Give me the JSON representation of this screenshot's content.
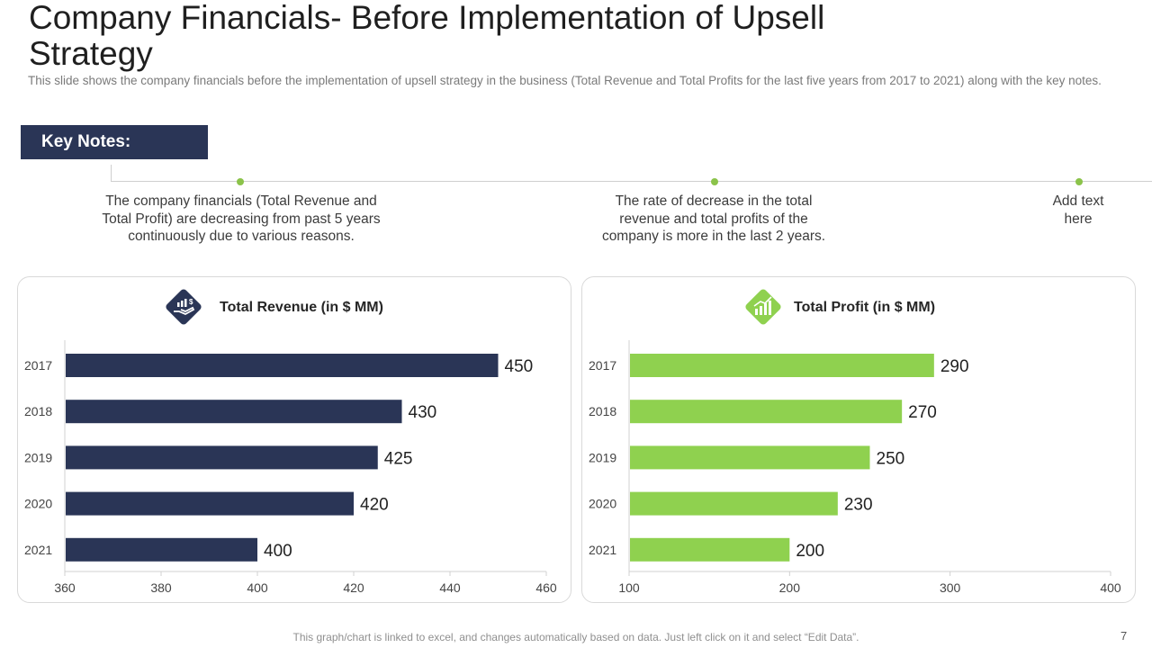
{
  "slide": {
    "title": "Company Financials- Before Implementation of Upsell Strategy",
    "subtitle": "This slide shows the company financials before the implementation of upsell strategy in the business (Total Revenue and Total Profits for the last five years from 2017 to 2021) along with the key notes.",
    "key_notes_label": "Key Notes:",
    "notes": [
      "The company financials (Total Revenue and Total Profit) are decreasing from past 5 years continuously  due to various reasons.",
      "The rate of decrease in the total revenue and total profits of the company is more in the last 2 years.",
      "Add text here"
    ],
    "footer": "This graph/chart is linked to excel, and changes automatically based on data. Just left click on it and select “Edit Data”.",
    "page_number": "7"
  },
  "icons": {
    "revenue": "hand-money-icon",
    "profit": "growth-chart-icon"
  },
  "colors": {
    "navy": "#2a3556",
    "green": "#8fd14f",
    "accent_dot": "#8bc34a"
  },
  "chart_data": [
    {
      "type": "bar",
      "orientation": "horizontal",
      "title": "Total Revenue (in $ MM)",
      "categories": [
        "2017",
        "2018",
        "2019",
        "2020",
        "2021"
      ],
      "values": [
        450,
        430,
        425,
        420,
        400
      ],
      "xlim": [
        360,
        460
      ],
      "xticks": [
        360,
        380,
        400,
        420,
        440,
        460
      ],
      "color": "#2a3556",
      "grid": false,
      "data_labels": true
    },
    {
      "type": "bar",
      "orientation": "horizontal",
      "title": "Total Profit (in $ MM)",
      "categories": [
        "2017",
        "2018",
        "2019",
        "2020",
        "2021"
      ],
      "values": [
        290,
        270,
        250,
        230,
        200
      ],
      "xlim": [
        100,
        400
      ],
      "xticks": [
        100,
        200,
        300,
        400
      ],
      "color": "#8fd14f",
      "grid": false,
      "data_labels": true
    }
  ]
}
